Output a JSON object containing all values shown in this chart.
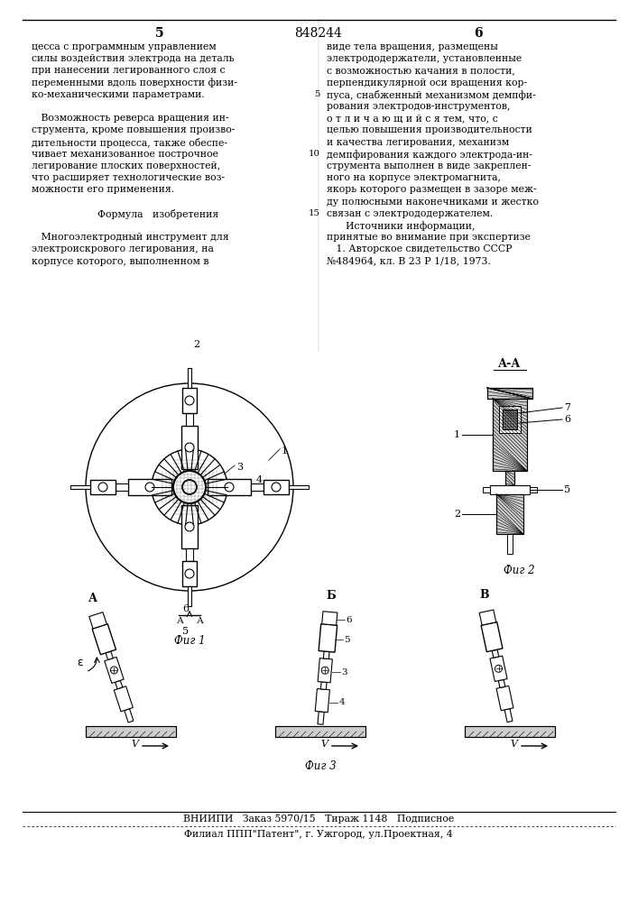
{
  "bg_color": "#ffffff",
  "page_number_left": "5",
  "page_number_center": "848244",
  "page_number_right": "6",
  "left_column_text": [
    "цесса с программным управлением",
    "силы воздействия электрода на деталь",
    "при нанесении легированного слоя с",
    "переменными вдоль поверхности физи-",
    "ко-механическими параметрами.",
    "",
    "   Возможность реверса вращения ин-",
    "струмента, кроме повышения произво-",
    "дительности процесса, также обеспе-",
    "чивает механизованное построчное",
    "легирование плоских поверхностей,",
    "что расширяет технологические воз-",
    "можности его применения.",
    "",
    "      Формула   изобретения",
    "",
    "   Многоэлектродный инструмент для",
    "электроискрового легирования, на",
    "корпусе которого, выполненном в"
  ],
  "right_column_text": [
    "виде тела вращения, размещены",
    "электрододержатели, установленные",
    "с возможностью качания в полости,",
    "перпендикулярной оси вращения кор-",
    "пуса, снабженный механизмом демпфи-",
    "рования электродов-инструментов,",
    "о т л и ч а ю щ и й с я тем, что, с",
    "целью повышения производительности",
    "и качества легирования, механизм",
    "демпфирования каждого электрода-ин-",
    "струмента выполнен в виде закреплен-",
    "ного на корпусе электромагнита,",
    "якорь которого размещен в зазоре меж-",
    "ду полюсными наконечниками и жестко",
    "связан с электрододержателем.",
    "      Источники информации,",
    "принятые во внимание при экспертизе",
    "   1. Авторское свидетельство СССР",
    "№484964, кл. В 23 Р 1/18, 1973."
  ],
  "right_col_line_numbers": {
    "5": "5",
    "10": "10",
    "16": "15"
  },
  "footer_line1": "ВНИИПИ   Заказ 5970/15   Тираж 1148   Подписное",
  "footer_line2": "Филиал ППП\"Патент\", г. Ужгород, ул.Проектная, 4",
  "fig1_label": "Фиг 1",
  "fig2_label": "Фиг 2",
  "fig3_label": "Фиг 3",
  "section_label": "А-А"
}
